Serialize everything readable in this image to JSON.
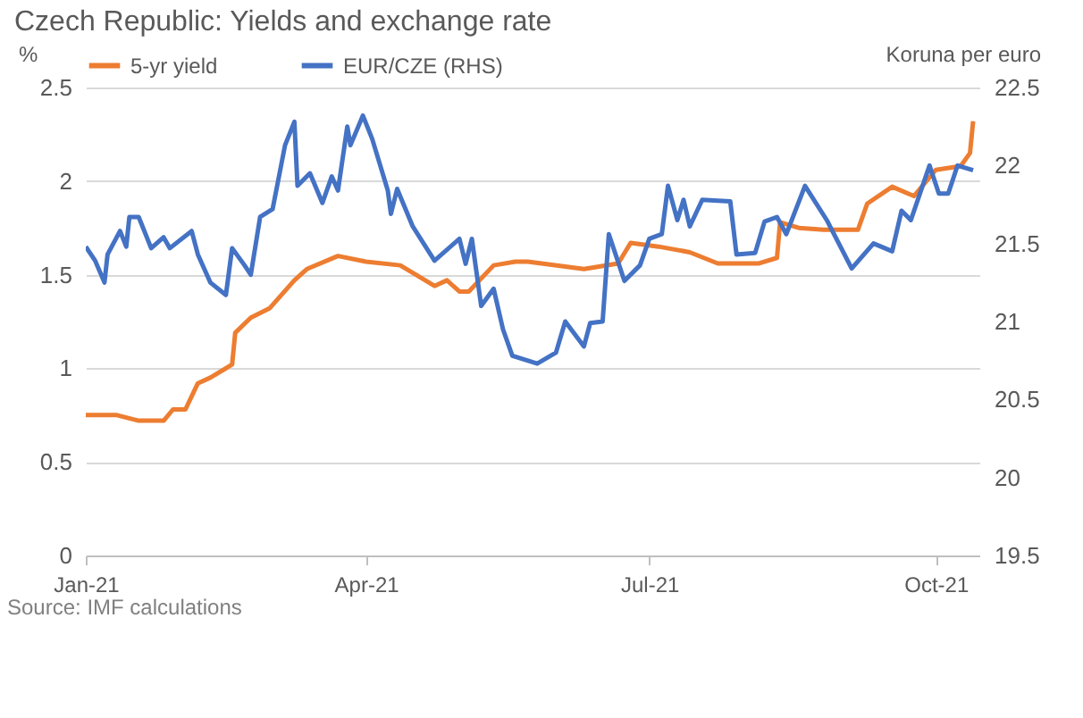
{
  "chart_data": {
    "type": "line",
    "title": "Czech Republic: Yields and exchange rate",
    "ylabel": "%",
    "y2label": "Koruna per euro",
    "annotations": [
      "Source: IMF calculations"
    ],
    "xlim": [
      "2021-01-01",
      "2021-10-15"
    ],
    "xticks": [
      {
        "value": "2021-01-01",
        "label": "Jan-21"
      },
      {
        "value": "2021-04-01",
        "label": "Apr-21"
      },
      {
        "value": "2021-07-01",
        "label": "Jul-21"
      },
      {
        "value": "2021-10-01",
        "label": "Oct-21"
      }
    ],
    "ylim": [
      0,
      2.5
    ],
    "yticks": [
      0,
      0.5,
      1,
      1.5,
      2,
      2.5
    ],
    "y2lim": [
      19.5,
      22.5
    ],
    "y2ticks": [
      19.5,
      20,
      20.5,
      21,
      21.5,
      22,
      22.5
    ],
    "grid": "y",
    "legend": "top",
    "series": [
      {
        "name": "5-yr yield",
        "color": "#ed7d31",
        "x": [
          "2021-01-01",
          "2021-01-11",
          "2021-01-18",
          "2021-01-26",
          "2021-01-29",
          "2021-02-02",
          "2021-02-06",
          "2021-02-10",
          "2021-02-17",
          "2021-02-18",
          "2021-02-23",
          "2021-03-01",
          "2021-03-09",
          "2021-03-13",
          "2021-03-23",
          "2021-04-01",
          "2021-04-12",
          "2021-04-23",
          "2021-04-27",
          "2021-05-01",
          "2021-05-04",
          "2021-05-12",
          "2021-05-19",
          "2021-05-23",
          "2021-06-10",
          "2021-06-21",
          "2021-06-25",
          "2021-07-04",
          "2021-07-14",
          "2021-07-23",
          "2021-08-05",
          "2021-08-11",
          "2021-08-12",
          "2021-08-18",
          "2021-08-26",
          "2021-09-06",
          "2021-09-09",
          "2021-09-17",
          "2021-09-24",
          "2021-10-01",
          "2021-10-09",
          "2021-10-12",
          "2021-10-13"
        ],
        "values": [
          0.75,
          0.75,
          0.72,
          0.72,
          0.78,
          0.78,
          0.92,
          0.95,
          1.02,
          1.19,
          1.27,
          1.32,
          1.47,
          1.53,
          1.6,
          1.57,
          1.55,
          1.44,
          1.47,
          1.41,
          1.41,
          1.55,
          1.57,
          1.57,
          1.53,
          1.56,
          1.67,
          1.65,
          1.62,
          1.56,
          1.56,
          1.59,
          1.78,
          1.75,
          1.74,
          1.74,
          1.88,
          1.97,
          1.92,
          2.06,
          2.08,
          2.15,
          2.32
        ]
      },
      {
        "name": "EUR/CZE (RHS)",
        "color": "#4472c4",
        "axis": "y2",
        "x": [
          "2021-01-01",
          "2021-01-04",
          "2021-01-07",
          "2021-01-08",
          "2021-01-12",
          "2021-01-14",
          "2021-01-15",
          "2021-01-18",
          "2021-01-22",
          "2021-01-26",
          "2021-01-28",
          "2021-02-04",
          "2021-02-06",
          "2021-02-10",
          "2021-02-15",
          "2021-02-17",
          "2021-02-21",
          "2021-02-23",
          "2021-02-26",
          "2021-03-02",
          "2021-03-06",
          "2021-03-09",
          "2021-03-10",
          "2021-03-14",
          "2021-03-18",
          "2021-03-21",
          "2021-03-23",
          "2021-03-26",
          "2021-03-27",
          "2021-03-31",
          "2021-04-03",
          "2021-04-08",
          "2021-04-09",
          "2021-04-11",
          "2021-04-16",
          "2021-04-23",
          "2021-05-01",
          "2021-05-03",
          "2021-05-05",
          "2021-05-08",
          "2021-05-12",
          "2021-05-15",
          "2021-05-18",
          "2021-05-26",
          "2021-06-01",
          "2021-06-04",
          "2021-06-10",
          "2021-06-12",
          "2021-06-16",
          "2021-06-18",
          "2021-06-23",
          "2021-06-28",
          "2021-07-01",
          "2021-07-05",
          "2021-07-07",
          "2021-07-10",
          "2021-07-12",
          "2021-07-14",
          "2021-07-18",
          "2021-07-27",
          "2021-07-29",
          "2021-08-04",
          "2021-08-07",
          "2021-08-11",
          "2021-08-14",
          "2021-08-20",
          "2021-08-27",
          "2021-09-04",
          "2021-09-11",
          "2021-09-17",
          "2021-09-20",
          "2021-09-23",
          "2021-09-29",
          "2021-10-02",
          "2021-10-05",
          "2021-10-08",
          "2021-10-13"
        ],
        "values": [
          21.48,
          21.39,
          21.25,
          21.43,
          21.58,
          21.48,
          21.67,
          21.67,
          21.47,
          21.54,
          21.47,
          21.58,
          21.43,
          21.25,
          21.17,
          21.47,
          21.36,
          21.3,
          21.67,
          21.72,
          22.13,
          22.28,
          21.87,
          21.95,
          21.76,
          21.93,
          21.84,
          22.25,
          22.13,
          22.32,
          22.17,
          21.84,
          21.69,
          21.85,
          21.61,
          21.39,
          21.53,
          21.37,
          21.53,
          21.1,
          21.21,
          20.95,
          20.78,
          20.73,
          20.8,
          21.0,
          20.84,
          20.99,
          21.0,
          21.56,
          21.26,
          21.36,
          21.53,
          21.56,
          21.87,
          21.65,
          21.78,
          21.61,
          21.78,
          21.77,
          21.43,
          21.44,
          21.64,
          21.67,
          21.56,
          21.87,
          21.65,
          21.34,
          21.5,
          21.45,
          21.71,
          21.65,
          22.0,
          21.82,
          21.82,
          22.0,
          21.97
        ]
      }
    ]
  }
}
